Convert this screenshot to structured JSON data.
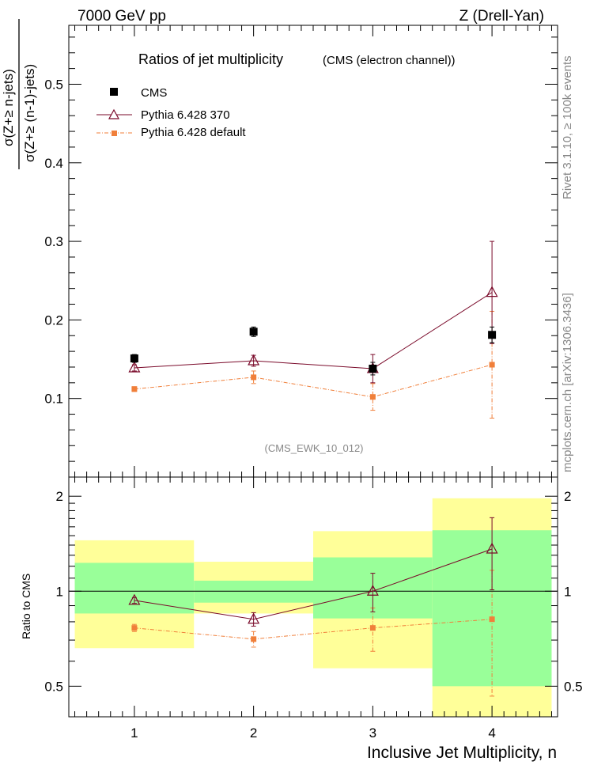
{
  "header": {
    "energy_label": "7000 GeV pp",
    "process_label": "Z (Drell-Yan)"
  },
  "side": {
    "rivet_label": "Rivet 3.1.10, ≥ 100k events",
    "mcplots_label": "mcplots.cern.ch [arXiv:1306.3436]"
  },
  "main": {
    "title": "Ratios of jet multiplicity",
    "title_sub": "(CMS (electron channel))",
    "analysis_label": "(CMS_EWK_10_012)",
    "ylabel_num": "σ(Z+≥ n-jets)",
    "ylabel_den": "σ(Z+≥ (n-1)-jets)"
  },
  "ratio": {
    "ylabel": "Ratio to CMS",
    "xlabel": "Inclusive Jet Multiplicity, n"
  },
  "legend": {
    "entries": [
      {
        "label": "CMS"
      },
      {
        "label": "Pythia 6.428 370"
      },
      {
        "label": "Pythia 6.428 default"
      }
    ]
  },
  "colors": {
    "cms": "#000000",
    "pythia370": "#7a0a2a",
    "pythia_default": "#f07f3a",
    "band_inner": "#99ff99",
    "band_outer": "#ffff99"
  },
  "chart_data": [
    {
      "type": "scatter",
      "panel": "main",
      "x": [
        1,
        2,
        3,
        4
      ],
      "xlim": [
        0.45,
        4.55
      ],
      "ylim": [
        0,
        0.575
      ],
      "yticks": [
        0.1,
        0.2,
        0.3,
        0.4,
        0.5
      ],
      "ytick_labels": [
        "0.1",
        "0.2",
        "0.3",
        "0.4",
        "0.5"
      ],
      "series": [
        {
          "name": "CMS",
          "values": [
            0.151,
            0.185,
            0.138,
            0.181
          ],
          "errors": [
            0.005,
            0.006,
            0.008,
            0.01
          ]
        },
        {
          "name": "Pythia 6.428 370",
          "values": [
            0.139,
            0.148,
            0.138,
            0.235
          ],
          "errors": [
            0.004,
            0.007,
            0.018,
            0.065
          ]
        },
        {
          "name": "Pythia 6.428 default",
          "values": [
            0.112,
            0.127,
            0.102,
            0.143
          ],
          "errors": [
            0.003,
            0.008,
            0.017,
            0.068
          ]
        }
      ]
    },
    {
      "type": "scatter",
      "panel": "ratio",
      "x": [
        1,
        2,
        3,
        4
      ],
      "xlim": [
        0.45,
        4.55
      ],
      "ylim": [
        0.4,
        2.3
      ],
      "log_y": true,
      "xticks": [
        1,
        2,
        3,
        4
      ],
      "xtick_labels": [
        "1",
        "2",
        "3",
        "4"
      ],
      "yticks": [
        0.5,
        1,
        2
      ],
      "ytick_labels": [
        "0.5",
        "1",
        "2"
      ],
      "bands": [
        {
          "x_range": [
            0.5,
            1.5
          ],
          "inner": [
            0.85,
            1.23
          ],
          "outer": [
            0.66,
            1.45
          ]
        },
        {
          "x_range": [
            1.5,
            2.5
          ],
          "inner": [
            0.92,
            1.08
          ],
          "outer": [
            0.85,
            1.24
          ]
        },
        {
          "x_range": [
            2.5,
            3.5
          ],
          "inner": [
            0.82,
            1.28
          ],
          "outer": [
            0.57,
            1.55
          ]
        },
        {
          "x_range": [
            3.5,
            4.5
          ],
          "inner": [
            0.5,
            1.56
          ],
          "outer": [
            0.3,
            1.97
          ]
        }
      ],
      "series": [
        {
          "name": "Pythia 6.428 370",
          "values": [
            0.935,
            0.815,
            1.0,
            1.36
          ],
          "errors": [
            0.02,
            0.04,
            0.14,
            0.35
          ]
        },
        {
          "name": "Pythia 6.428 default",
          "values": [
            0.765,
            0.705,
            0.765,
            0.815
          ],
          "errors": [
            0.02,
            0.04,
            0.12,
            0.35
          ]
        }
      ]
    }
  ]
}
